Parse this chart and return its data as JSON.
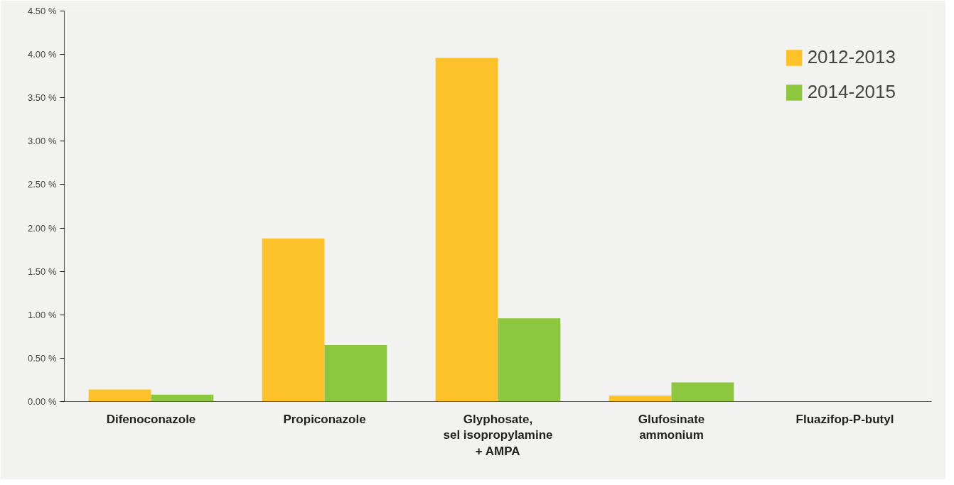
{
  "chart_data": {
    "type": "bar",
    "categories": [
      "Difenoconazole",
      "Propiconazole",
      "Glyphosate,\nsel isopropylamine\n+ AMPA",
      "Glufosinate\nammonium",
      "Fluazifop-P-butyl"
    ],
    "series": [
      {
        "name": "2012-2013",
        "color": "#fdc12a",
        "values": [
          0.14,
          1.88,
          3.96,
          0.07,
          0
        ]
      },
      {
        "name": "2014-2015",
        "color": "#8dc63f",
        "values": [
          0.08,
          0.65,
          0.96,
          0.22,
          0
        ]
      }
    ],
    "ylim": [
      0,
      4.5
    ],
    "yticks": [
      {
        "value": 0,
        "label": "0.00 %"
      },
      {
        "value": 0.5,
        "label": "0.50 %"
      },
      {
        "value": 1,
        "label": "1.00 %"
      },
      {
        "value": 1.5,
        "label": "1.50 %"
      },
      {
        "value": 2,
        "label": "2.00 %"
      },
      {
        "value": 2.5,
        "label": "2.50 %"
      },
      {
        "value": 3,
        "label": "3.00 %"
      },
      {
        "value": 3.5,
        "label": "3.50 %"
      },
      {
        "value": 4,
        "label": "4.00 %"
      },
      {
        "value": 4.5,
        "label": "4.50 %"
      }
    ],
    "grid": false,
    "legend": "top right"
  }
}
